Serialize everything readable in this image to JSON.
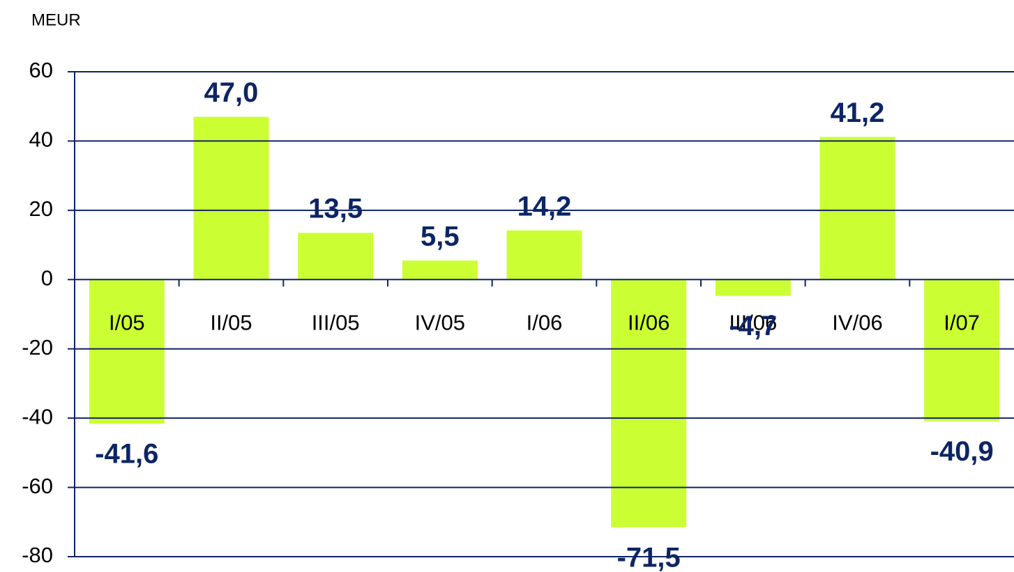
{
  "chart_data": {
    "type": "bar",
    "y_label": "MEUR",
    "categories": [
      "I/05",
      "II/05",
      "III/05",
      "IV/05",
      "I/06",
      "II/06",
      "III/06",
      "IV/06",
      "I/07"
    ],
    "values": [
      -41.6,
      47.0,
      13.5,
      5.5,
      14.2,
      -71.5,
      -4.7,
      41.2,
      -40.9
    ],
    "value_labels": [
      "-41,6",
      "47,0",
      "13,5",
      "5,5",
      "14,2",
      "-71,5",
      "-4,7",
      "41,2",
      "-40,9"
    ],
    "color": "#ccff33",
    "ylim": [
      -80,
      60
    ],
    "yticks": [
      -80,
      -60,
      -40,
      -20,
      0,
      20,
      40,
      60
    ],
    "grid": true
  }
}
